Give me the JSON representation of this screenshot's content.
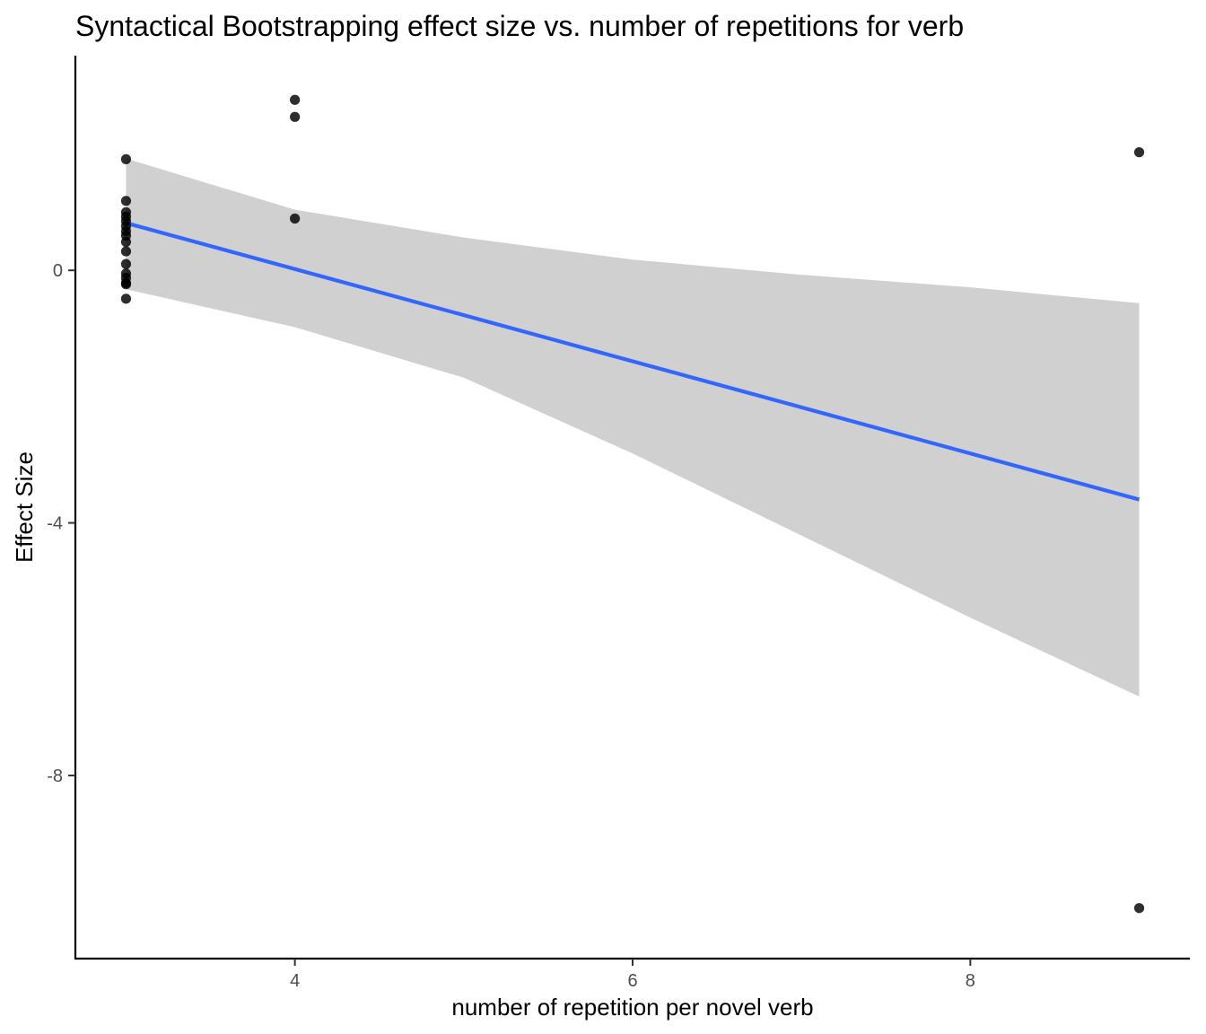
{
  "chart_data": {
    "type": "scatter",
    "title": "Syntactical Bootstrapping effect size vs. number of repetitions for verb",
    "xlabel": "number of repetition per novel verb",
    "ylabel": "Effect Size",
    "xlim": [
      2.7,
      9.3
    ],
    "ylim": [
      -10.9,
      3.4
    ],
    "x_ticks": [
      4,
      6,
      8
    ],
    "x_tick_labels": [
      "4",
      "6",
      "8"
    ],
    "y_ticks": [
      0,
      -4,
      -8
    ],
    "y_tick_labels": [
      "0",
      "-4",
      "-8"
    ],
    "grid": false,
    "legend": "none",
    "point_color": "#000000",
    "fit_line_color": "#3366FF",
    "ribbon_color": "#bebebe",
    "series": [
      {
        "kind": "points",
        "x": [
          3,
          3,
          3,
          3,
          3,
          3,
          3,
          3,
          3,
          3,
          3,
          3,
          3,
          3,
          3,
          3,
          4,
          4,
          4,
          9,
          9
        ],
        "y": [
          1.76,
          1.1,
          0.92,
          0.85,
          0.78,
          0.7,
          0.62,
          0.55,
          0.45,
          0.3,
          0.1,
          -0.05,
          -0.12,
          -0.2,
          -0.22,
          -0.45,
          2.7,
          2.43,
          0.82,
          1.87,
          -10.1
        ]
      },
      {
        "kind": "fit_line",
        "x": [
          3,
          9
        ],
        "y": [
          0.75,
          -3.63
        ]
      },
      {
        "kind": "confidence_band",
        "x": [
          3,
          4,
          5,
          6,
          7,
          8,
          9
        ],
        "upper": [
          1.77,
          0.96,
          0.52,
          0.17,
          -0.07,
          -0.27,
          -0.52
        ],
        "lower": [
          -0.3,
          -0.9,
          -1.7,
          -2.9,
          -4.2,
          -5.5,
          -6.75
        ]
      }
    ]
  }
}
